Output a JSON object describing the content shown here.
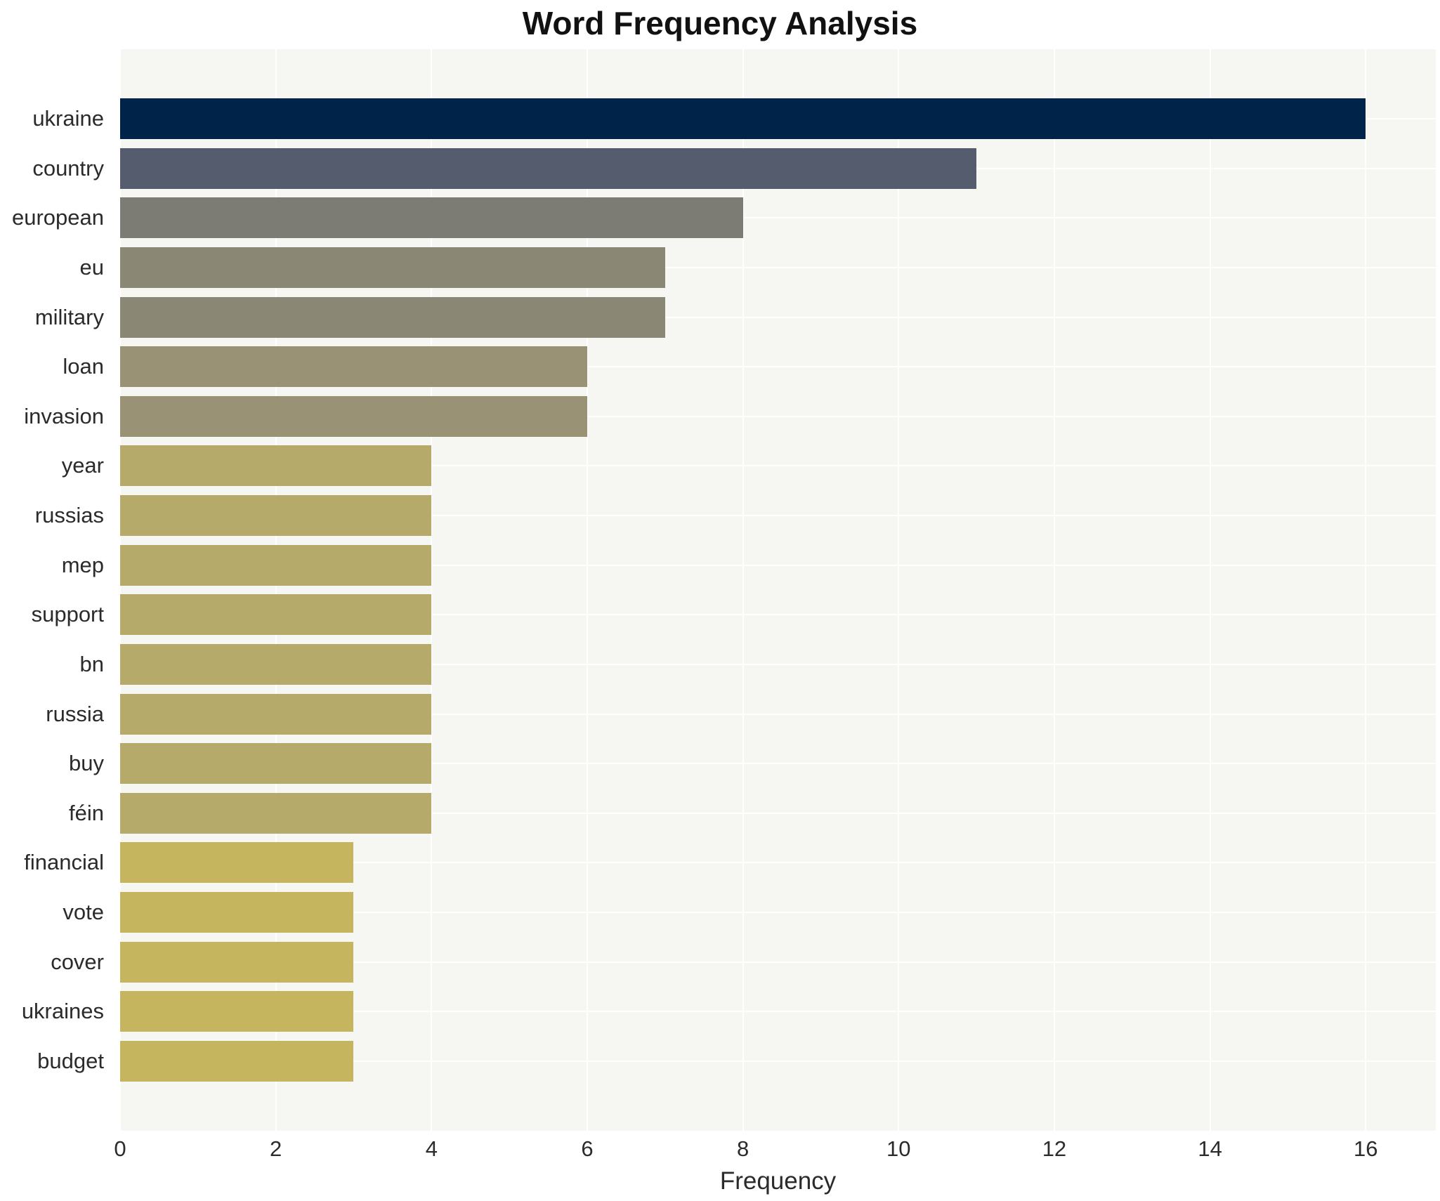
{
  "title": "Word Frequency Analysis",
  "chart_data": {
    "type": "bar",
    "orientation": "horizontal",
    "title": "Word Frequency Analysis",
    "xlabel": "Frequency",
    "ylabel": "",
    "categories": [
      "ukraine",
      "country",
      "european",
      "eu",
      "military",
      "loan",
      "invasion",
      "year",
      "russias",
      "mep",
      "support",
      "bn",
      "russia",
      "buy",
      "féin",
      "financial",
      "vote",
      "cover",
      "ukraines",
      "budget"
    ],
    "values": [
      16,
      11,
      8,
      7,
      7,
      6,
      6,
      4,
      4,
      4,
      4,
      4,
      4,
      4,
      4,
      3,
      3,
      3,
      3,
      3
    ],
    "bar_colors": [
      "#002349",
      "#555c6e",
      "#7c7b74",
      "#8a8775",
      "#8a8775",
      "#999274",
      "#999274",
      "#b5aa6a",
      "#b5aa6a",
      "#b5aa6a",
      "#b5aa6a",
      "#b5aa6a",
      "#b5aa6a",
      "#b5aa6a",
      "#b5aa6a",
      "#c5b55f",
      "#c5b55f",
      "#c5b55f",
      "#c5b55f",
      "#c5b55f"
    ],
    "xticks": [
      0,
      2,
      4,
      6,
      8,
      10,
      12,
      14,
      16
    ],
    "xlim": [
      0,
      16.9
    ],
    "grid": true,
    "legend": false,
    "plot_background": "#f6f6f3",
    "gridline_color": "#ffffff"
  }
}
